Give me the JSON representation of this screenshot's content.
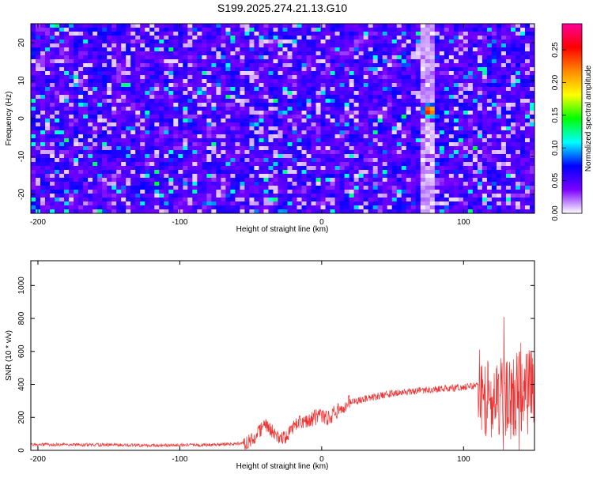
{
  "title": "S199.2025.274.21.13.G10",
  "colors": {
    "line": "#ee3333",
    "hot_spot": "#ff2a00",
    "vertical_band": "#e8dcf6"
  },
  "chart_data": [
    {
      "type": "heatmap",
      "title": "S199.2025.274.21.13.G10",
      "xlabel": "Height of straight line (km)",
      "ylabel": "Frequency (Hz)",
      "xlim": [
        -205,
        150
      ],
      "ylim": [
        -25,
        25
      ],
      "x_ticks": [
        -200,
        -100,
        0,
        100
      ],
      "y_ticks": [
        -20,
        -10,
        0,
        10,
        20
      ],
      "colorbar": {
        "label": "Normalized spectral amplitude",
        "range": [
          0,
          0.29
        ],
        "ticks": [
          0.0,
          0.05,
          0.1,
          0.15,
          0.2,
          0.25
        ],
        "tick_labels": [
          "0.00",
          "0.05",
          "0.10",
          "0.15",
          "0.20",
          "0.25"
        ],
        "stops": [
          "#ffffff",
          "#7a00ff",
          "#0000ff",
          "#00ffff",
          "#00ff00",
          "#ffff00",
          "#ff8800",
          "#ff0000",
          "#ff0099"
        ]
      },
      "peak": {
        "x": 76,
        "y": 2,
        "value": 0.29
      },
      "low_amplitude_band": {
        "x_center": 76,
        "width_km": 10
      },
      "background_level": [
        0.02,
        0.08
      ]
    },
    {
      "type": "line",
      "xlabel": "Height of straight line (km)",
      "ylabel": "SNR (10 * v/v)",
      "xlim": [
        -205,
        150
      ],
      "ylim": [
        0,
        1150
      ],
      "x_ticks": [
        -200,
        -100,
        0,
        100
      ],
      "y_ticks": [
        0,
        200,
        400,
        600,
        800,
        1000
      ],
      "series": [
        {
          "x": [
            -205,
            -180,
            -150,
            -120,
            -90,
            -70,
            -60,
            -50,
            -45,
            -40,
            -35,
            -30,
            -25,
            -20,
            -15,
            -10,
            -5,
            0,
            5,
            10,
            15,
            20,
            30,
            40,
            50,
            60,
            70,
            80,
            90,
            100,
            105,
            110,
            115,
            120,
            130,
            140,
            150
          ],
          "values": [
            35,
            35,
            33,
            30,
            32,
            35,
            40,
            55,
            110,
            150,
            120,
            70,
            80,
            140,
            170,
            180,
            200,
            210,
            200,
            230,
            260,
            290,
            310,
            330,
            345,
            355,
            365,
            370,
            375,
            385,
            390,
            395,
            350,
            300,
            320,
            340,
            360
          ]
        }
      ]
    }
  ]
}
